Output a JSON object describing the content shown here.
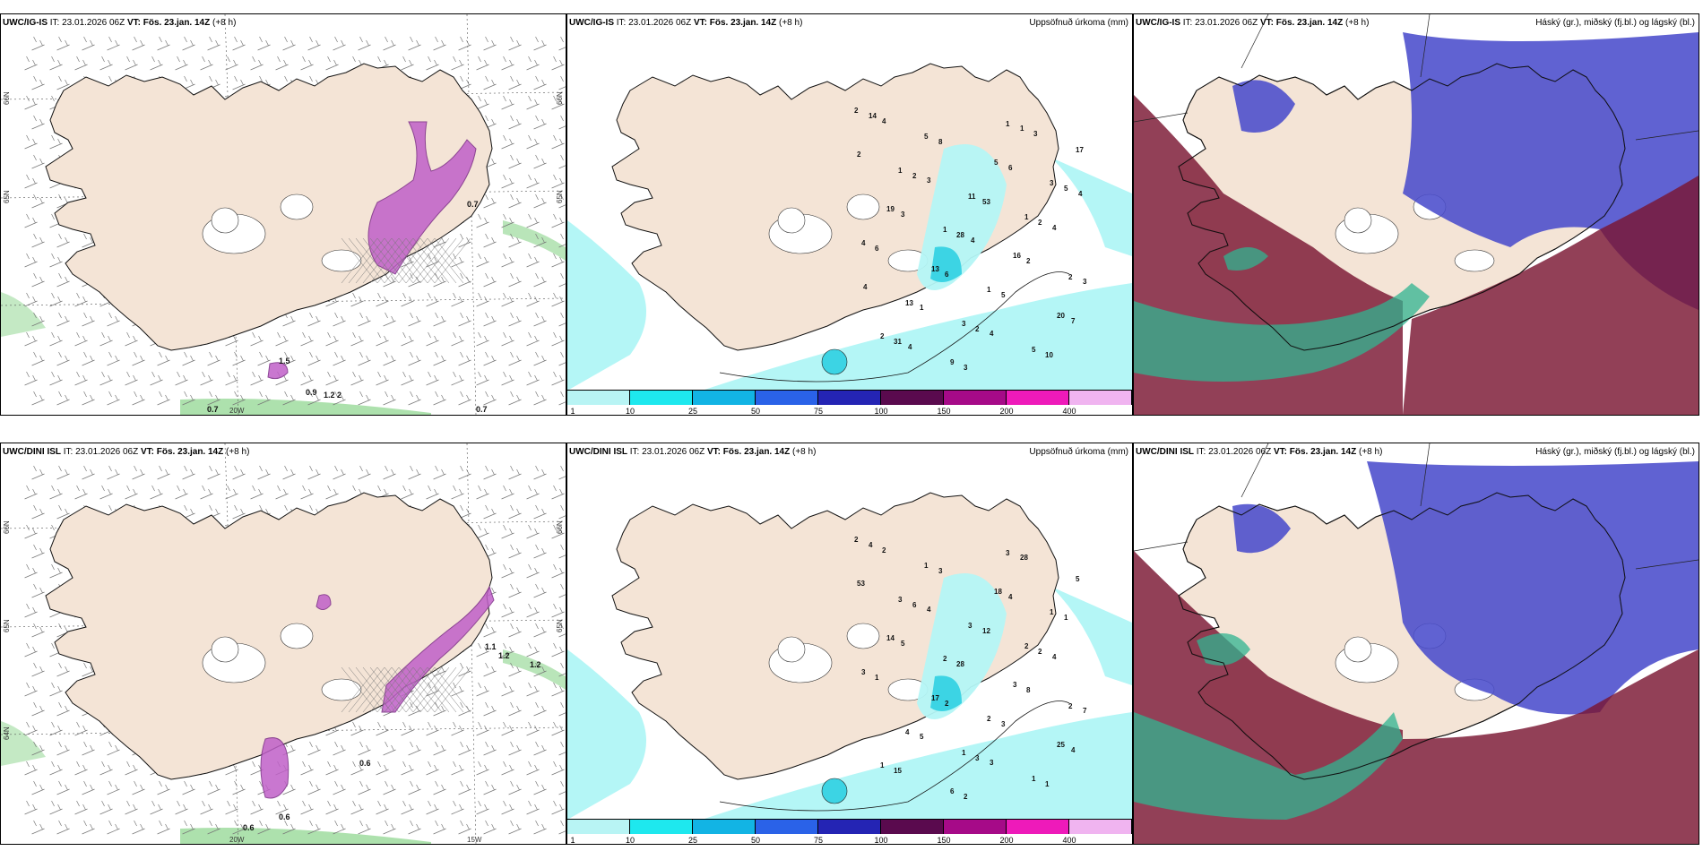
{
  "rows": [
    {
      "model": "UWC/IG-IS",
      "it": "IT: 23.01.2026 06Z",
      "vt_label": "VT:",
      "vt": "Fös. 23.jan. 14Z",
      "lead": "(+8 h)",
      "precip_labels": [
        "2",
        "1",
        "3",
        "1",
        "2",
        "1",
        "1",
        "2",
        "3",
        "1",
        "5",
        "4",
        "5",
        "11",
        "13",
        "17",
        "16",
        "9",
        "19",
        "20",
        "5",
        "13",
        "14",
        "2",
        "2",
        "2",
        "3",
        "1",
        "28",
        "31",
        "5",
        "5",
        "8",
        "6",
        "10",
        "53",
        "1",
        "2",
        "2",
        "3",
        "3",
        "7",
        "6",
        "6",
        "4",
        "4",
        "4",
        "3",
        "4",
        "3",
        "4",
        "4",
        "4"
      ],
      "wind_labels": [
        "0.7",
        "1.5",
        "0.9",
        "1.2",
        "2",
        "0.7",
        "0.7"
      ],
      "axis_labels": [
        "66N",
        "65N",
        "20W",
        "66N",
        "65N"
      ]
    },
    {
      "model": "UWC/DINI ISL",
      "it": "IT: 23.01.2026 06Z",
      "vt_label": "VT:",
      "vt": "Fös. 23.jan. 14Z",
      "lead": "(+8 h)",
      "precip_labels": [
        "2",
        "2",
        "1",
        "3",
        "2",
        "3",
        "2",
        "1",
        "1",
        "2",
        "1",
        "3",
        "1",
        "3",
        "4",
        "5",
        "3",
        "6",
        "14",
        "25",
        "18",
        "17",
        "4",
        "2",
        "3",
        "6",
        "7",
        "28",
        "28",
        "15",
        "1",
        "3",
        "3",
        "1",
        "1",
        "12",
        "5",
        "53",
        "8",
        "2",
        "5",
        "4",
        "4",
        "2",
        "2",
        "4",
        "3",
        "4"
      ],
      "wind_labels": [
        "1.2",
        "0.6",
        "0.6",
        "0.6",
        "1.1",
        "1.2"
      ],
      "axis_labels": [
        "66N",
        "65N",
        "64N",
        "20W",
        "15W",
        "66N",
        "65N"
      ]
    }
  ],
  "precip_title": "Uppsöfnuð úrkoma (mm)",
  "cloud_title": "Háský (gr.), miðský (fj.bl.) og lágský (bl.)",
  "legend": {
    "ticks": [
      "1",
      "10",
      "25",
      "50",
      "75",
      "100",
      "150",
      "200",
      "400"
    ],
    "colors": [
      "#b8f4f4",
      "#1ee8ee",
      "#12b4e4",
      "#2a62e8",
      "#2424b4",
      "#5a0a4e",
      "#a60a88",
      "#ee1aba",
      "#f0b4f0"
    ]
  },
  "colors": {
    "land": "#f4e4d6",
    "sea": "#ffffff",
    "precip_light": "#b4f6f6",
    "precip_mid": "#3cd4e4",
    "snow": "#c060c8",
    "rain_green": "#8ad48a",
    "cloud_high": "#7a1632",
    "cloud_mid": "#4a4ccc",
    "cloud_low": "#30b490"
  }
}
